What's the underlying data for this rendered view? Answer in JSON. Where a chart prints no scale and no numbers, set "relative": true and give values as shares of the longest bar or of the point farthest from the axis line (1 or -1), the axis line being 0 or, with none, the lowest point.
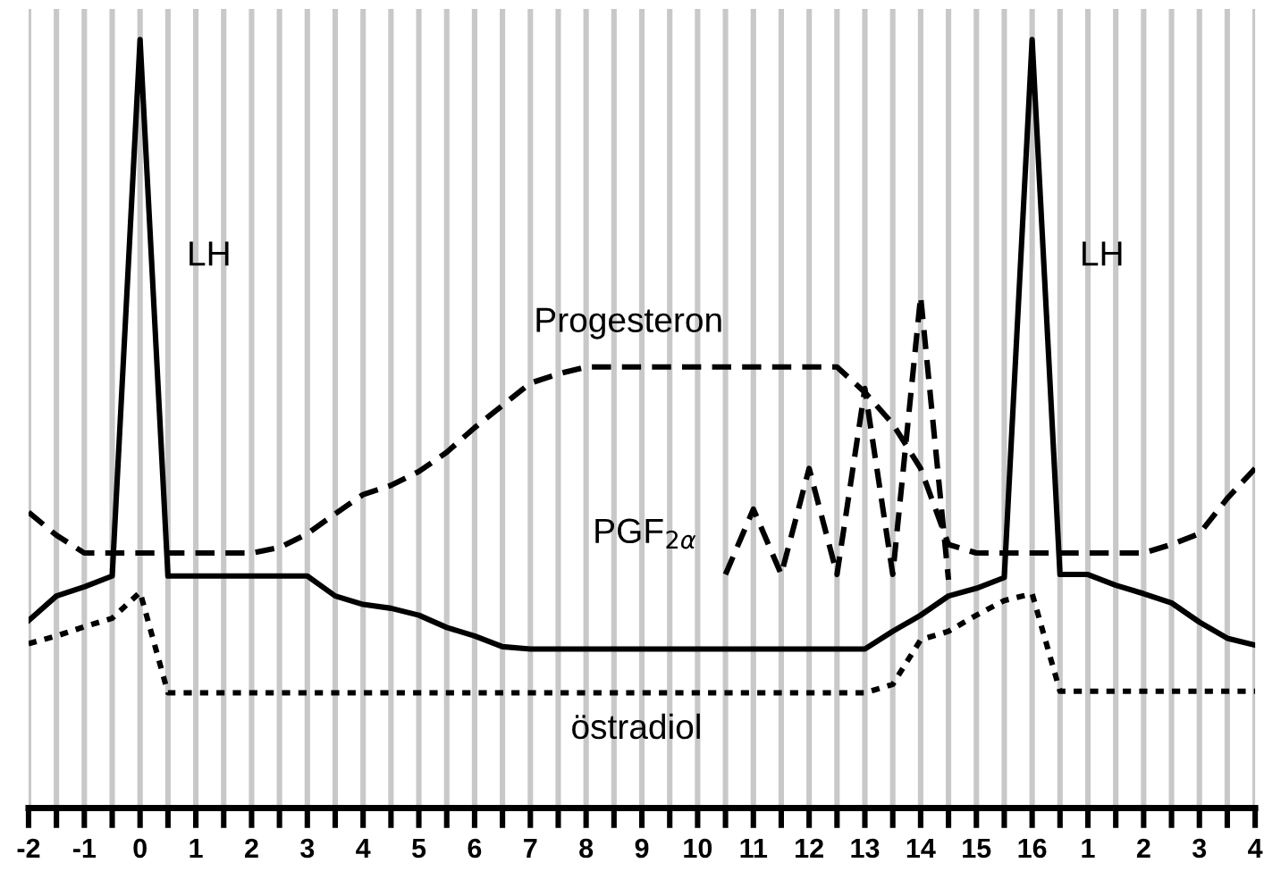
{
  "chart_data": {
    "type": "line",
    "relative": true,
    "grid": "x",
    "marker": "none",
    "categories": [
      "-2",
      null,
      "-1",
      null,
      "0",
      null,
      "1",
      null,
      "2",
      null,
      "3",
      null,
      "4",
      null,
      "5",
      null,
      "6",
      null,
      "7",
      null,
      "8",
      null,
      "9",
      null,
      "10",
      null,
      "11",
      null,
      "12",
      null,
      "13",
      null,
      "14",
      null,
      "15",
      null,
      "16",
      null,
      "1",
      null,
      "2",
      null,
      "3",
      null,
      "4"
    ],
    "series": [
      {
        "color": "#000000",
        "line_style": "solid",
        "values": [
          0.244,
          0.276,
          0.288,
          0.302,
          1,
          0.302,
          0.302,
          0.302,
          0.302,
          0.302,
          0.302,
          0.276,
          0.265,
          0.26,
          0.251,
          0.235,
          0.224,
          0.21,
          0.207,
          0.207,
          0.207,
          0.207,
          0.207,
          0.207,
          0.207,
          0.207,
          0.207,
          0.207,
          0.207,
          0.207,
          0.207,
          0.23,
          0.251,
          0.276,
          0.286,
          0.3,
          1,
          0.304,
          0.304,
          0.29,
          0.279,
          0.267,
          0.242,
          0.221,
          0.212
        ]
      },
      {
        "color": "#000000",
        "line_style": "dotted",
        "values": [
          0.214,
          0.224,
          0.236,
          0.247,
          0.281,
          0.15,
          0.15,
          0.15,
          0.15,
          0.15,
          0.15,
          0.15,
          0.15,
          0.15,
          0.15,
          0.15,
          0.15,
          0.15,
          0.15,
          0.15,
          0.15,
          0.15,
          0.15,
          0.15,
          0.15,
          0.15,
          0.15,
          0.15,
          0.15,
          0.15,
          0.15,
          0.161,
          0.219,
          0.23,
          0.251,
          0.27,
          0.279,
          0.152,
          0.152,
          0.152,
          0.152,
          0.152,
          0.152,
          0.152,
          0.152
        ]
      },
      {
        "color": "#000000",
        "line_style": "dashed",
        "values": [
          0.385,
          0.355,
          0.332,
          0.332,
          0.332,
          0.332,
          0.332,
          0.332,
          0.332,
          0.339,
          0.357,
          0.383,
          0.408,
          0.42,
          0.438,
          0.463,
          0.495,
          0.524,
          0.553,
          0.565,
          0.574,
          0.574,
          0.574,
          0.574,
          0.574,
          0.574,
          0.574,
          0.574,
          0.574,
          0.574,
          0.541,
          0.5,
          0.442,
          0.343,
          0.332,
          0.332,
          0.332,
          0.332,
          0.332,
          0.332,
          0.332,
          0.343,
          0.357,
          0.403,
          0.442
        ]
      },
      {
        "color": "#000000",
        "line_style": "dashed",
        "values": [
          null,
          null,
          null,
          null,
          null,
          null,
          null,
          null,
          null,
          null,
          null,
          null,
          null,
          null,
          null,
          null,
          null,
          null,
          null,
          null,
          null,
          null,
          null,
          null,
          null,
          0.304,
          0.389,
          0.304,
          0.442,
          0.304,
          0.546,
          0.304,
          0.666,
          0.297,
          null,
          null,
          null,
          null,
          null,
          null,
          null,
          null,
          null,
          null,
          null
        ]
      }
    ],
    "annotations": [
      "LH",
      "LH",
      "Progesteron",
      "PGF$_{2α}$",
      "östradiol"
    ]
  }
}
